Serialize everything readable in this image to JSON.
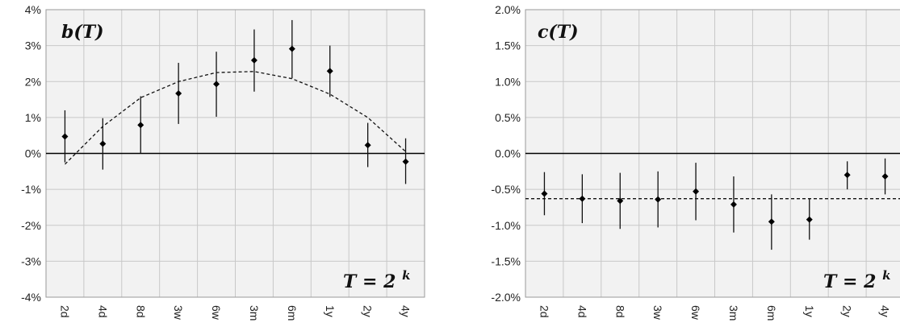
{
  "chart_data": [
    {
      "type": "scatter",
      "title": "b(T)",
      "annotation": {
        "base": "T = 2",
        "exponent": "k"
      },
      "categories": [
        "2d",
        "4d",
        "8d",
        "3w",
        "6w",
        "3m",
        "6m",
        "1y",
        "2y",
        "4y"
      ],
      "ylim": [
        -4,
        4
      ],
      "yticks": [
        "4%",
        "3%",
        "2%",
        "1%",
        "0%",
        "-1%",
        "-2%",
        "-3%",
        "-4%"
      ],
      "ytick_values": [
        4,
        3,
        2,
        1,
        0,
        -1,
        -2,
        -3,
        -4
      ],
      "grid": true,
      "series": [
        {
          "values": [
            0.47,
            0.27,
            0.79,
            1.67,
            1.93,
            2.59,
            2.91,
            2.29,
            0.23,
            -0.23
          ],
          "error_low": [
            -0.25,
            -0.45,
            0.0,
            0.82,
            1.02,
            1.72,
            2.09,
            1.57,
            -0.38,
            -0.85
          ],
          "error_high": [
            1.2,
            0.98,
            1.59,
            2.52,
            2.83,
            3.45,
            3.71,
            3.0,
            0.85,
            0.42
          ]
        }
      ],
      "fit_line": {
        "style": "dashed",
        "x": [
          0,
          1,
          2,
          3,
          4,
          5,
          6,
          7,
          8,
          9
        ],
        "y": [
          -0.3,
          0.75,
          1.55,
          2.0,
          2.25,
          2.28,
          2.08,
          1.65,
          1.0,
          0.05
        ]
      }
    },
    {
      "type": "scatter",
      "title": "c(T)",
      "annotation": {
        "base": "T = 2",
        "exponent": "k"
      },
      "categories": [
        "2d",
        "4d",
        "8d",
        "3w",
        "6w",
        "3m",
        "6m",
        "1y",
        "2y",
        "4y"
      ],
      "ylim": [
        -2.0,
        2.0
      ],
      "yticks": [
        "2.0%",
        "1.5%",
        "1.0%",
        "0.5%",
        "0.0%",
        "-0.5%",
        "-1.0%",
        "-1.5%",
        "-2.0%"
      ],
      "ytick_values": [
        2.0,
        1.5,
        1.0,
        0.5,
        0.0,
        -0.5,
        -1.0,
        -1.5,
        -2.0
      ],
      "grid": true,
      "series": [
        {
          "values": [
            -0.56,
            -0.63,
            -0.66,
            -0.64,
            -0.53,
            -0.71,
            -0.95,
            -0.92,
            -0.3,
            -0.32
          ],
          "error_low": [
            -0.86,
            -0.97,
            -1.05,
            -1.03,
            -0.93,
            -1.1,
            -1.34,
            -1.2,
            -0.5,
            -0.57
          ],
          "error_high": [
            -0.26,
            -0.29,
            -0.27,
            -0.25,
            -0.13,
            -0.32,
            -0.57,
            -0.63,
            -0.11,
            -0.07
          ]
        }
      ],
      "fit_line": {
        "style": "dashed",
        "x": [
          -0.5,
          9.5
        ],
        "y": [
          -0.63,
          -0.63
        ]
      }
    }
  ]
}
